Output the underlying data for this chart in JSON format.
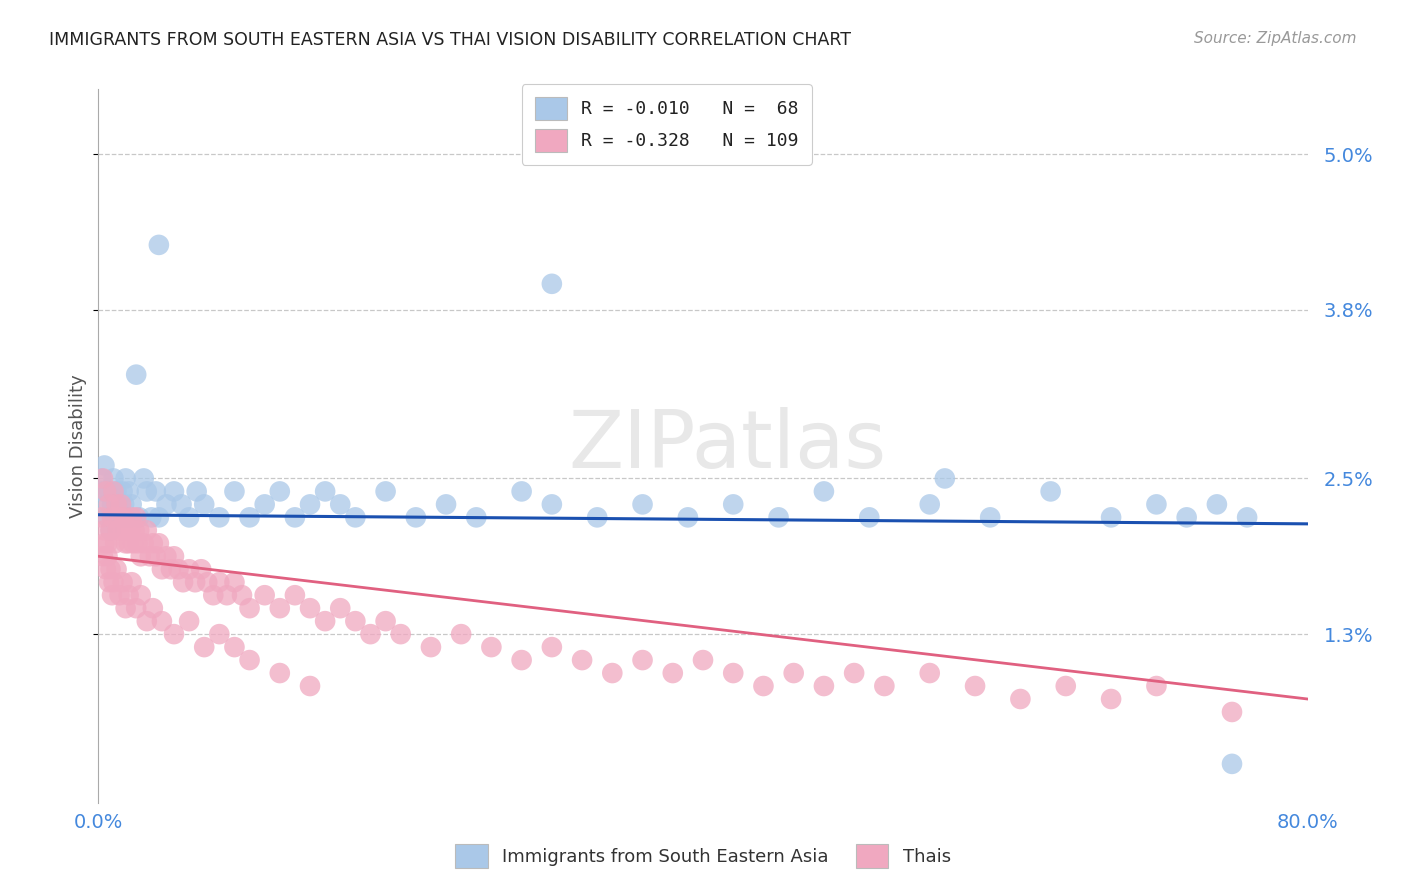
{
  "title": "IMMIGRANTS FROM SOUTH EASTERN ASIA VS THAI VISION DISABILITY CORRELATION CHART",
  "source": "Source: ZipAtlas.com",
  "ylabel": "Vision Disability",
  "xlim": [
    0.0,
    0.8
  ],
  "ylim": [
    0.0,
    0.055
  ],
  "xtick_labels": [
    "0.0%",
    "80.0%"
  ],
  "xtick_vals": [
    0.0,
    0.8
  ],
  "ytick_labels": [
    "1.3%",
    "2.5%",
    "3.8%",
    "5.0%"
  ],
  "ytick_vals": [
    0.013,
    0.025,
    0.038,
    0.05
  ],
  "grid_color": "#c8c8c8",
  "background_color": "#ffffff",
  "legend_blue_label": "R = -0.010   N =  68",
  "legend_pink_label": "R = -0.328   N = 109",
  "legend_x_label": "Immigrants from South Eastern Asia",
  "legend_pink_x_label": "Thais",
  "blue_color": "#aac8e8",
  "pink_color": "#f0a8c0",
  "blue_line_color": "#1a50b0",
  "pink_line_color": "#e06080",
  "watermark": "ZIPatlas",
  "blue_trend_y0": 0.0222,
  "blue_trend_y1": 0.0215,
  "pink_trend_y0": 0.019,
  "pink_trend_y1": 0.008,
  "blue_scatter_x": [
    0.002,
    0.003,
    0.004,
    0.005,
    0.006,
    0.007,
    0.008,
    0.009,
    0.01,
    0.011,
    0.012,
    0.013,
    0.015,
    0.016,
    0.017,
    0.018,
    0.019,
    0.02,
    0.021,
    0.022,
    0.025,
    0.027,
    0.03,
    0.032,
    0.035,
    0.038,
    0.04,
    0.045,
    0.05,
    0.055,
    0.06,
    0.065,
    0.07,
    0.08,
    0.09,
    0.1,
    0.11,
    0.12,
    0.13,
    0.14,
    0.15,
    0.16,
    0.17,
    0.19,
    0.21,
    0.23,
    0.25,
    0.28,
    0.3,
    0.33,
    0.36,
    0.39,
    0.42,
    0.45,
    0.48,
    0.51,
    0.55,
    0.59,
    0.63,
    0.67,
    0.7,
    0.72,
    0.74,
    0.76,
    0.04,
    0.3,
    0.56,
    0.75
  ],
  "blue_scatter_y": [
    0.025,
    0.024,
    0.026,
    0.023,
    0.022,
    0.024,
    0.021,
    0.023,
    0.025,
    0.022,
    0.024,
    0.023,
    0.022,
    0.024,
    0.023,
    0.025,
    0.022,
    0.024,
    0.022,
    0.023,
    0.033,
    0.022,
    0.025,
    0.024,
    0.022,
    0.024,
    0.022,
    0.023,
    0.024,
    0.023,
    0.022,
    0.024,
    0.023,
    0.022,
    0.024,
    0.022,
    0.023,
    0.024,
    0.022,
    0.023,
    0.024,
    0.023,
    0.022,
    0.024,
    0.022,
    0.023,
    0.022,
    0.024,
    0.023,
    0.022,
    0.023,
    0.022,
    0.023,
    0.022,
    0.024,
    0.022,
    0.023,
    0.022,
    0.024,
    0.022,
    0.023,
    0.022,
    0.023,
    0.022,
    0.043,
    0.04,
    0.025,
    0.003
  ],
  "pink_scatter_x": [
    0.002,
    0.003,
    0.004,
    0.005,
    0.006,
    0.007,
    0.008,
    0.009,
    0.01,
    0.011,
    0.012,
    0.013,
    0.014,
    0.015,
    0.016,
    0.017,
    0.018,
    0.019,
    0.02,
    0.021,
    0.022,
    0.023,
    0.024,
    0.025,
    0.026,
    0.027,
    0.028,
    0.03,
    0.032,
    0.034,
    0.036,
    0.038,
    0.04,
    0.042,
    0.045,
    0.048,
    0.05,
    0.053,
    0.056,
    0.06,
    0.064,
    0.068,
    0.072,
    0.076,
    0.08,
    0.085,
    0.09,
    0.095,
    0.1,
    0.11,
    0.12,
    0.13,
    0.14,
    0.15,
    0.16,
    0.17,
    0.18,
    0.19,
    0.2,
    0.22,
    0.24,
    0.26,
    0.28,
    0.3,
    0.32,
    0.34,
    0.36,
    0.38,
    0.4,
    0.42,
    0.44,
    0.46,
    0.48,
    0.5,
    0.52,
    0.55,
    0.58,
    0.61,
    0.64,
    0.67,
    0.003,
    0.004,
    0.005,
    0.006,
    0.007,
    0.008,
    0.009,
    0.01,
    0.012,
    0.014,
    0.016,
    0.018,
    0.02,
    0.022,
    0.025,
    0.028,
    0.032,
    0.036,
    0.042,
    0.05,
    0.06,
    0.07,
    0.08,
    0.09,
    0.1,
    0.12,
    0.14,
    0.7,
    0.75
  ],
  "pink_scatter_y": [
    0.022,
    0.025,
    0.021,
    0.024,
    0.02,
    0.023,
    0.021,
    0.022,
    0.024,
    0.02,
    0.023,
    0.021,
    0.022,
    0.023,
    0.021,
    0.022,
    0.02,
    0.021,
    0.02,
    0.021,
    0.022,
    0.02,
    0.021,
    0.022,
    0.02,
    0.021,
    0.019,
    0.02,
    0.021,
    0.019,
    0.02,
    0.019,
    0.02,
    0.018,
    0.019,
    0.018,
    0.019,
    0.018,
    0.017,
    0.018,
    0.017,
    0.018,
    0.017,
    0.016,
    0.017,
    0.016,
    0.017,
    0.016,
    0.015,
    0.016,
    0.015,
    0.016,
    0.015,
    0.014,
    0.015,
    0.014,
    0.013,
    0.014,
    0.013,
    0.012,
    0.013,
    0.012,
    0.011,
    0.012,
    0.011,
    0.01,
    0.011,
    0.01,
    0.011,
    0.01,
    0.009,
    0.01,
    0.009,
    0.01,
    0.009,
    0.01,
    0.009,
    0.008,
    0.009,
    0.008,
    0.019,
    0.02,
    0.018,
    0.019,
    0.017,
    0.018,
    0.016,
    0.017,
    0.018,
    0.016,
    0.017,
    0.015,
    0.016,
    0.017,
    0.015,
    0.016,
    0.014,
    0.015,
    0.014,
    0.013,
    0.014,
    0.012,
    0.013,
    0.012,
    0.011,
    0.01,
    0.009,
    0.009,
    0.007
  ]
}
